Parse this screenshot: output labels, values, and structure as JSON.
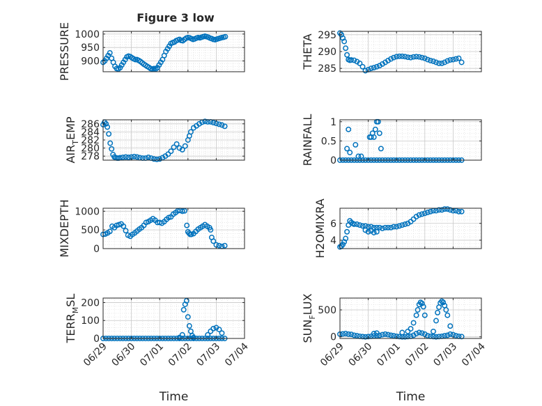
{
  "figure_title": "Figure 3 low",
  "marker_color": "#0072BD",
  "grid_color": "#d9d9d9",
  "axis_color": "#262626",
  "x_axis": {
    "label": "Time",
    "ticks": [
      "06/29",
      "06/30",
      "07/01",
      "07/02",
      "07/03",
      "07/04"
    ],
    "tick_days": [
      0,
      1,
      2,
      3,
      4,
      5
    ],
    "xlim_days": [
      0,
      5
    ]
  },
  "chart_data": [
    {
      "type": "scatter",
      "ylabel": "PRESSURE",
      "ylim": [
        860,
        1010
      ],
      "yticks": [
        900,
        950,
        1000
      ],
      "grid": true,
      "x": [
        0.0,
        0.06,
        0.12,
        0.18,
        0.24,
        0.3,
        0.36,
        0.42,
        0.48,
        0.54,
        0.6,
        0.66,
        0.72,
        0.78,
        0.84,
        0.9,
        0.96,
        1.02,
        1.08,
        1.14,
        1.2,
        1.26,
        1.32,
        1.38,
        1.44,
        1.5,
        1.56,
        1.62,
        1.68,
        1.74,
        1.8,
        1.86,
        1.92,
        1.98,
        2.04,
        2.1,
        2.16,
        2.22,
        2.28,
        2.34,
        2.4,
        2.46,
        2.52,
        2.58,
        2.64,
        2.7,
        2.76,
        2.82,
        2.88,
        2.94,
        3.0,
        3.06,
        3.12,
        3.18,
        3.24,
        3.3,
        3.36,
        3.42,
        3.48,
        3.54,
        3.6,
        3.66,
        3.72,
        3.78,
        3.84,
        3.9,
        3.96,
        4.02,
        4.08,
        4.14,
        4.2,
        4.26,
        4.32
      ],
      "y": [
        895,
        900,
        910,
        920,
        930,
        910,
        895,
        880,
        872,
        870,
        875,
        885,
        895,
        905,
        915,
        918,
        916,
        912,
        908,
        905,
        905,
        902,
        898,
        893,
        888,
        884,
        880,
        876,
        872,
        870,
        872,
        870,
        875,
        885,
        895,
        905,
        920,
        935,
        945,
        955,
        965,
        968,
        970,
        975,
        978,
        980,
        976,
        975,
        980,
        985,
        987,
        986,
        983,
        980,
        982,
        985,
        987,
        986,
        988,
        990,
        992,
        990,
        988,
        985,
        983,
        980,
        979,
        981,
        983,
        985,
        987,
        988,
        990
      ]
    },
    {
      "type": "scatter",
      "ylabel": "THETA",
      "ylim": [
        284,
        296
      ],
      "yticks": [
        285,
        290,
        295
      ],
      "grid": true,
      "x": [
        0.0,
        0.05,
        0.1,
        0.15,
        0.2,
        0.25,
        0.3,
        0.35,
        0.4,
        0.5,
        0.6,
        0.7,
        0.8,
        0.9,
        1.0,
        1.1,
        1.2,
        1.3,
        1.4,
        1.5,
        1.6,
        1.7,
        1.8,
        1.9,
        2.0,
        2.1,
        2.2,
        2.3,
        2.4,
        2.5,
        2.6,
        2.7,
        2.8,
        2.9,
        3.0,
        3.1,
        3.2,
        3.3,
        3.4,
        3.5,
        3.6,
        3.7,
        3.8,
        3.9,
        4.0,
        4.1,
        4.2,
        4.3
      ],
      "y": [
        295.5,
        295,
        294,
        293,
        291,
        289,
        287.6,
        287.4,
        287.5,
        287.4,
        287,
        286.5,
        285.5,
        284.3,
        284.6,
        285,
        285.2,
        285.5,
        285.8,
        286.3,
        286.8,
        287.3,
        287.8,
        288.2,
        288.5,
        288.6,
        288.6,
        288.5,
        288.3,
        288.2,
        288.4,
        288.5,
        288.4,
        288.2,
        288.0,
        287.6,
        287.3,
        287.1,
        286.8,
        286.5,
        286.5,
        286.8,
        287.2,
        287.5,
        287.6,
        287.8,
        288.0,
        286.8
      ]
    },
    {
      "type": "scatter",
      "ylabel": "AIR_TEMP",
      "ylim": [
        277,
        287
      ],
      "yticks": [
        278,
        280,
        282,
        284,
        286
      ],
      "grid": true,
      "x": [
        0.0,
        0.05,
        0.1,
        0.15,
        0.2,
        0.25,
        0.3,
        0.35,
        0.4,
        0.45,
        0.5,
        0.55,
        0.6,
        0.7,
        0.8,
        0.9,
        1.0,
        1.1,
        1.2,
        1.3,
        1.4,
        1.5,
        1.6,
        1.7,
        1.8,
        1.9,
        2.0,
        2.1,
        2.2,
        2.3,
        2.4,
        2.5,
        2.6,
        2.7,
        2.8,
        2.9,
        3.0,
        3.05,
        3.1,
        3.2,
        3.3,
        3.4,
        3.5,
        3.6,
        3.7,
        3.8,
        3.9,
        4.0,
        4.1,
        4.2,
        4.3
      ],
      "y": [
        285.8,
        286.4,
        286,
        285.2,
        283.5,
        281.2,
        279.8,
        278.4,
        277.8,
        277.6,
        277.5,
        277.5,
        277.6,
        277.7,
        277.8,
        277.7,
        277.8,
        277.9,
        277.8,
        277.6,
        277.5,
        277.5,
        277.7,
        277.5,
        277.3,
        277.2,
        277.3,
        277.6,
        278,
        278.5,
        279.2,
        280.2,
        281,
        280,
        279.6,
        280.5,
        282,
        283,
        284,
        285,
        285.5,
        286,
        286.4,
        286.6,
        286.5,
        286.5,
        286.3,
        286.1,
        285.9,
        285.7,
        285.4
      ]
    },
    {
      "type": "scatter",
      "ylabel": "RAINFALL",
      "ylim": [
        0,
        1.05
      ],
      "yticks": [
        0,
        0.5,
        1
      ],
      "grid": true,
      "x": [
        0.0,
        0.1,
        0.2,
        0.3,
        0.4,
        0.5,
        0.6,
        0.7,
        0.8,
        0.9,
        1.0,
        1.1,
        1.2,
        1.3,
        1.4,
        1.5,
        1.6,
        1.7,
        1.8,
        1.9,
        2.0,
        2.1,
        2.2,
        2.3,
        2.4,
        2.5,
        2.6,
        2.7,
        2.8,
        2.9,
        3.0,
        3.1,
        3.2,
        3.3,
        3.4,
        3.5,
        3.6,
        3.7,
        3.8,
        3.9,
        4.0,
        4.1,
        4.2,
        4.3,
        0.25,
        0.3,
        0.35,
        0.55,
        0.65,
        0.75,
        1.05,
        1.1,
        1.15,
        1.2,
        1.25,
        1.3,
        1.35,
        1.4,
        1.45
      ],
      "y": [
        0,
        0,
        0,
        0,
        0,
        0,
        0,
        0,
        0,
        0,
        0,
        0,
        0,
        0,
        0,
        0,
        0,
        0,
        0,
        0,
        0,
        0,
        0,
        0,
        0,
        0,
        0,
        0,
        0,
        0,
        0,
        0,
        0,
        0,
        0,
        0,
        0,
        0,
        0,
        0,
        0,
        0,
        0,
        0,
        0.3,
        0.8,
        0.2,
        0.4,
        0.1,
        0.1,
        0.6,
        0.6,
        0.7,
        0.6,
        0.8,
        1.0,
        1.0,
        0.7,
        0.3
      ]
    },
    {
      "type": "scatter",
      "ylabel": "MIXDEPTH",
      "ylim": [
        0,
        1080
      ],
      "yticks": [
        0,
        500,
        1000
      ],
      "grid": true,
      "x": [
        0.0,
        0.08,
        0.16,
        0.24,
        0.32,
        0.4,
        0.48,
        0.56,
        0.64,
        0.72,
        0.8,
        0.88,
        0.96,
        1.04,
        1.12,
        1.2,
        1.28,
        1.36,
        1.44,
        1.52,
        1.6,
        1.68,
        1.76,
        1.84,
        1.92,
        2.0,
        2.08,
        2.16,
        2.24,
        2.32,
        2.4,
        2.48,
        2.56,
        2.64,
        2.72,
        2.8,
        2.88,
        2.96,
        3.0,
        3.04,
        3.08,
        3.12,
        3.2,
        3.28,
        3.36,
        3.44,
        3.52,
        3.6,
        3.68,
        3.76,
        3.8,
        3.84,
        3.9,
        4.0,
        4.1,
        4.2,
        4.3
      ],
      "y": [
        380,
        390,
        420,
        460,
        600,
        560,
        620,
        640,
        660,
        600,
        480,
        360,
        330,
        380,
        420,
        470,
        520,
        560,
        620,
        700,
        720,
        760,
        800,
        760,
        700,
        700,
        680,
        720,
        780,
        830,
        850,
        920,
        960,
        1010,
        1020,
        1000,
        1010,
        620,
        450,
        410,
        380,
        380,
        400,
        460,
        520,
        560,
        600,
        640,
        600,
        560,
        500,
        300,
        200,
        100,
        80,
        60,
        80
      ]
    },
    {
      "type": "scatter",
      "ylabel": "H2OMIXRA",
      "ylim": [
        3,
        7.8
      ],
      "yticks": [
        4,
        6
      ],
      "grid": true,
      "x": [
        0.0,
        0.05,
        0.1,
        0.15,
        0.2,
        0.25,
        0.3,
        0.35,
        0.4,
        0.45,
        0.5,
        0.6,
        0.7,
        0.8,
        0.9,
        1.0,
        1.1,
        1.2,
        1.3,
        1.4,
        1.5,
        1.6,
        1.7,
        1.8,
        1.9,
        2.0,
        2.1,
        2.2,
        2.3,
        2.4,
        2.5,
        2.6,
        2.7,
        2.8,
        2.9,
        3.0,
        3.1,
        3.2,
        3.3,
        3.4,
        3.5,
        3.6,
        3.7,
        3.8,
        3.9,
        4.0,
        4.1,
        4.2,
        4.3,
        0.9,
        1.0,
        1.1,
        1.2,
        1.3
      ],
      "y": [
        3.2,
        3.3,
        3.5,
        3.8,
        4.2,
        5.0,
        5.8,
        6.3,
        6.1,
        6.0,
        5.9,
        5.9,
        5.8,
        5.7,
        5.7,
        5.6,
        5.6,
        5.5,
        5.5,
        5.5,
        5.4,
        5.5,
        5.5,
        5.5,
        5.6,
        5.6,
        5.7,
        5.8,
        5.9,
        6.0,
        6.2,
        6.5,
        6.8,
        7.0,
        7.1,
        7.2,
        7.3,
        7.4,
        7.5,
        7.5,
        7.6,
        7.6,
        7.7,
        7.7,
        7.6,
        7.5,
        7.5,
        7.4,
        7.4,
        5.2,
        5.0,
        5.1,
        4.9,
        5.0
      ]
    },
    {
      "type": "scatter",
      "ylabel": "TERR_MSL",
      "ylim": [
        0,
        225
      ],
      "yticks": [
        0,
        100,
        200
      ],
      "grid": true,
      "x": [
        0.0,
        0.1,
        0.2,
        0.3,
        0.4,
        0.5,
        0.6,
        0.7,
        0.8,
        0.9,
        1.0,
        1.1,
        1.2,
        1.3,
        1.4,
        1.5,
        1.6,
        1.7,
        1.8,
        1.9,
        2.0,
        2.1,
        2.2,
        2.3,
        2.4,
        2.5,
        2.6,
        2.7,
        2.8,
        2.9,
        3.0,
        3.1,
        3.2,
        3.3,
        3.4,
        3.5,
        3.6,
        3.7,
        3.8,
        3.9,
        4.0,
        4.1,
        4.2,
        4.3,
        2.7,
        2.8,
        2.85,
        2.9,
        2.95,
        3.0,
        3.05,
        3.1,
        3.15,
        3.2,
        3.7,
        3.8,
        3.9,
        4.0,
        4.1,
        4.2
      ],
      "y": [
        0,
        0,
        0,
        0,
        0,
        0,
        0,
        0,
        0,
        0,
        0,
        0,
        0,
        0,
        0,
        0,
        0,
        0,
        0,
        0,
        0,
        0,
        0,
        0,
        0,
        0,
        0,
        0,
        0,
        0,
        0,
        0,
        0,
        0,
        0,
        0,
        0,
        0,
        0,
        0,
        0,
        0,
        0,
        0,
        5,
        20,
        160,
        190,
        210,
        120,
        70,
        40,
        15,
        5,
        20,
        40,
        55,
        60,
        50,
        30
      ]
    },
    {
      "type": "scatter",
      "ylabel": "SUN_FLUX",
      "ylim": [
        -30,
        720
      ],
      "yticks": [
        0,
        500
      ],
      "grid": true,
      "x": [
        0.0,
        0.1,
        0.2,
        0.3,
        0.4,
        0.5,
        0.6,
        0.7,
        0.8,
        0.9,
        1.0,
        1.1,
        1.2,
        1.3,
        1.4,
        1.5,
        1.6,
        1.7,
        1.8,
        1.9,
        2.0,
        2.1,
        2.2,
        2.3,
        2.4,
        2.5,
        2.6,
        2.7,
        2.8,
        2.9,
        3.0,
        3.1,
        3.2,
        3.3,
        3.4,
        3.5,
        3.6,
        3.7,
        3.8,
        3.9,
        4.0,
        4.1,
        4.2,
        4.3,
        1.2,
        1.3,
        2.2,
        2.4,
        2.5,
        2.6,
        2.7,
        2.75,
        2.8,
        2.85,
        2.9,
        2.95,
        3.0,
        3.3,
        3.4,
        3.45,
        3.5,
        3.55,
        3.6,
        3.65,
        3.7,
        3.75,
        3.8,
        3.9
      ],
      "y": [
        50,
        55,
        60,
        50,
        45,
        30,
        20,
        10,
        5,
        0,
        5,
        10,
        15,
        20,
        25,
        40,
        50,
        40,
        30,
        20,
        10,
        5,
        0,
        0,
        5,
        10,
        30,
        60,
        80,
        70,
        50,
        20,
        10,
        5,
        0,
        5,
        10,
        20,
        30,
        50,
        40,
        20,
        10,
        5,
        60,
        70,
        80,
        100,
        150,
        260,
        400,
        500,
        600,
        640,
        620,
        560,
        400,
        100,
        300,
        450,
        550,
        630,
        660,
        640,
        580,
        500,
        400,
        200
      ]
    }
  ]
}
